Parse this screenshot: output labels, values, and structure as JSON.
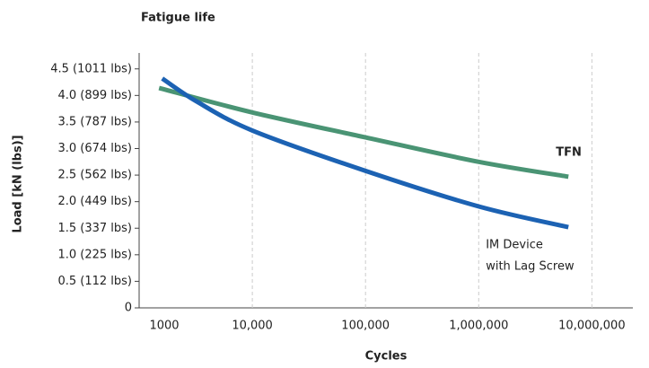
{
  "chart_data": {
    "type": "line",
    "title": "Fatigue life",
    "x_label": "Cycles",
    "y_label": "Load [kN (lbs)]",
    "log_x": true,
    "grid_x": true,
    "xlim": [
      1000,
      23000000
    ],
    "xticks": [
      1000,
      {
        "value": 10000,
        "label": "10,000"
      },
      {
        "value": 100000,
        "label": "100,000"
      },
      {
        "value": 1000000,
        "label": "1,000,000"
      },
      {
        "value": 10000000,
        "label": "10,000,000"
      }
    ],
    "ylim": [
      0,
      4.8
    ],
    "yticks": [
      0,
      {
        "value": 0.5,
        "label": "0.5 (112 lbs)"
      },
      {
        "value": 1.0,
        "label": "1.0 (225 lbs)"
      },
      {
        "value": 1.5,
        "label": "1.5 (337 lbs)"
      },
      {
        "value": 2.0,
        "label": "2.0 (449 lbs)"
      },
      {
        "value": 2.5,
        "label": "2.5 (562 lbs)"
      },
      {
        "value": 3.0,
        "label": "3.0 (674 lbs)"
      },
      {
        "value": 3.5,
        "label": "3.5 (787 lbs)"
      },
      {
        "value": 4.0,
        "label": "4.0 (899 lbs)"
      },
      {
        "value": 4.5,
        "label": "4.5 (1011 lbs)"
      }
    ],
    "series": [
      {
        "name": [
          "TFN"
        ],
        "color": "#4a9474",
        "label_bold": true,
        "x": [
          1500,
          10000,
          100000,
          1000000,
          6200000
        ],
        "values": [
          4.14,
          3.68,
          3.21,
          2.75,
          2.47
        ]
      },
      {
        "name": [
          "IM Device",
          "with Lag Screw"
        ],
        "color": "#1c62b3",
        "label_bold": false,
        "x": [
          1600,
          3200,
          10000,
          100000,
          1000000,
          6200000
        ],
        "values": [
          4.32,
          3.89,
          3.34,
          2.58,
          1.91,
          1.52
        ]
      }
    ]
  }
}
